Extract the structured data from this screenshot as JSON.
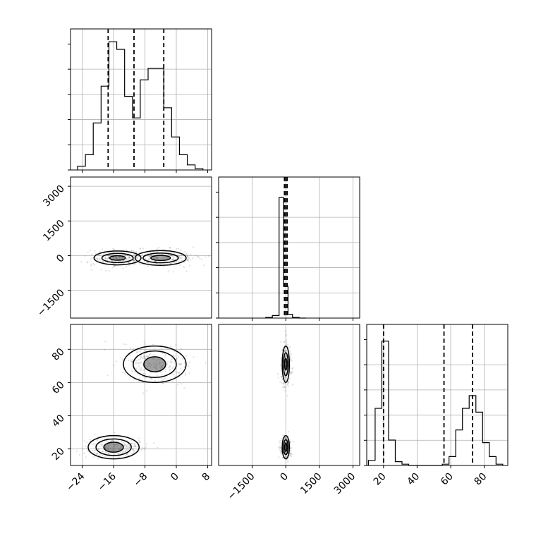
{
  "chart_data": [
    {
      "type": "histogram",
      "panel": "hist-x0",
      "xlim": [
        -27,
        9
      ],
      "ylim": [
        0,
        1.0
      ],
      "x_ticks": [
        -24,
        -16,
        -8,
        0,
        8
      ],
      "x_tick_labels_shown": false,
      "y_tick_labels_shown": false,
      "grid": true,
      "bin_edges": [
        -25.2,
        -23.2,
        -21.2,
        -19.2,
        -17.2,
        -15.2,
        -13.2,
        -11.2,
        -9.2,
        -7.2,
        -5.2,
        -3.2,
        -1.2,
        0.8,
        2.8,
        4.8,
        6.8
      ],
      "counts": [
        0.03,
        0.12,
        0.37,
        0.66,
        1.01,
        0.95,
        0.58,
        0.41,
        0.71,
        0.8,
        0.8,
        0.49,
        0.26,
        0.12,
        0.04,
        0.01
      ],
      "quantiles": [
        -17.4,
        -10.8,
        -3.2
      ]
    },
    {
      "type": "scatter-contour",
      "panel": "x0-x1",
      "xlim": [
        -27,
        9
      ],
      "ylim": [
        -2700,
        3400
      ],
      "y_ticks": [
        -1500,
        0,
        1500,
        3000
      ],
      "y_tick_labels": [
        "−1500",
        "0",
        "1500",
        "3000"
      ],
      "x_tick_labels_shown": false,
      "grid": true,
      "clusters": [
        {
          "center": [
            -15,
            -100
          ],
          "spread": [
            3.5,
            180
          ]
        },
        {
          "center": [
            -4,
            -100
          ],
          "spread": [
            4.5,
            180
          ]
        }
      ],
      "contours": [
        {
          "center": [
            -15,
            -100
          ],
          "radii": [
            [
              6,
              300
            ],
            [
              4,
              200
            ],
            [
              2,
              100
            ]
          ]
        },
        {
          "center": [
            -4,
            -100
          ],
          "radii": [
            [
              6.5,
              320
            ],
            [
              4.5,
              210
            ],
            [
              2.5,
              110
            ]
          ]
        }
      ]
    },
    {
      "type": "histogram",
      "panel": "hist-x1",
      "xlim": [
        -3000,
        3300
      ],
      "ylim": [
        0,
        1.0
      ],
      "x_ticks": [
        -1500,
        0,
        1500,
        3000
      ],
      "x_tick_labels_shown": false,
      "y_tick_labels_shown": false,
      "grid": true,
      "bin_edges": [
        -900,
        -600,
        -300,
        -100,
        100,
        300,
        600,
        900
      ],
      "counts": [
        0.005,
        0.02,
        0.95,
        0.25,
        0.03,
        0.005,
        0.0
      ],
      "quantiles": [
        -60,
        0,
        60
      ]
    },
    {
      "type": "scatter-contour",
      "panel": "x0-x2",
      "xlim": [
        -27,
        9
      ],
      "ylim": [
        10,
        95
      ],
      "x_ticks": [
        -24,
        -16,
        -8,
        0,
        8
      ],
      "x_tick_labels": [
        "−24",
        "−16",
        "−8",
        "0",
        "8"
      ],
      "y_ticks": [
        20,
        40,
        60,
        80
      ],
      "y_tick_labels": [
        "20",
        "40",
        "60",
        "80"
      ],
      "grid": true,
      "clusters": [
        {
          "center": [
            -16,
            21
          ],
          "spread": [
            3.5,
            3
          ]
        },
        {
          "center": [
            -5.5,
            71
          ],
          "spread": [
            4.5,
            6
          ]
        }
      ],
      "contours": [
        {
          "center": [
            -16,
            21
          ],
          "radii": [
            [
              6.5,
              7
            ],
            [
              4.5,
              5
            ],
            [
              2.5,
              3
            ]
          ]
        },
        {
          "center": [
            -5.5,
            71
          ],
          "radii": [
            [
              8,
              11
            ],
            [
              5.5,
              8
            ],
            [
              2.8,
              4.5
            ]
          ]
        }
      ]
    },
    {
      "type": "scatter-contour",
      "panel": "x1-x2",
      "xlim": [
        -3000,
        3300
      ],
      "ylim": [
        10,
        95
      ],
      "x_ticks": [
        -1500,
        0,
        1500,
        3000
      ],
      "x_tick_labels": [
        "−1500",
        "0",
        "1500",
        "3000"
      ],
      "y_tick_labels_shown": false,
      "grid": true,
      "clusters": [
        {
          "center": [
            0,
            21
          ],
          "spread": [
            120,
            3
          ]
        },
        {
          "center": [
            0,
            71
          ],
          "spread": [
            120,
            6
          ]
        }
      ],
      "contours": [
        {
          "center": [
            0,
            21
          ],
          "radii": [
            [
              160,
              7
            ],
            [
              100,
              4.5
            ],
            [
              50,
              2.5
            ]
          ]
        },
        {
          "center": [
            0,
            71
          ],
          "radii": [
            [
              160,
              11
            ],
            [
              100,
              7
            ],
            [
              50,
              3.5
            ]
          ]
        }
      ]
    },
    {
      "type": "histogram",
      "panel": "hist-x2",
      "xlim": [
        10,
        94
      ],
      "ylim": [
        0,
        1.0
      ],
      "x_ticks": [
        20,
        40,
        60,
        80
      ],
      "x_tick_labels": [
        "20",
        "40",
        "60",
        "80"
      ],
      "y_tick_labels_shown": false,
      "grid": true,
      "bin_edges": [
        11,
        15,
        19,
        23,
        27,
        31,
        35,
        39,
        43,
        47,
        51,
        55,
        59,
        63,
        67,
        71,
        75,
        79,
        83,
        87,
        91
      ],
      "counts": [
        0.04,
        0.45,
        0.98,
        0.2,
        0.03,
        0.01,
        0.0,
        0.0,
        0.0,
        0.0,
        0.0,
        0.01,
        0.07,
        0.28,
        0.45,
        0.55,
        0.42,
        0.18,
        0.07,
        0.01
      ],
      "quantiles": [
        20,
        56,
        73
      ]
    }
  ]
}
